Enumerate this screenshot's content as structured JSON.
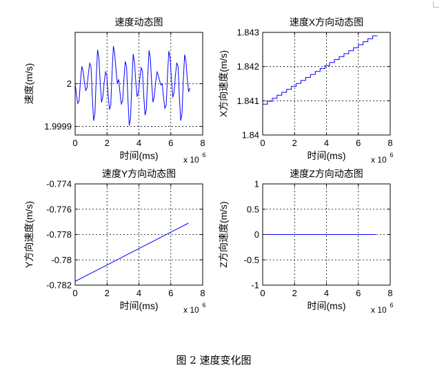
{
  "figure_caption": "图 2  速度变化图",
  "colors": {
    "series": "#0000ff",
    "axis": "#000000",
    "grid": "#000000",
    "background": "#ffffff"
  },
  "chart_data": [
    {
      "type": "line",
      "title": "速度动态图",
      "xlabel": "时间(ms)",
      "ylabel": "速度(m/s)",
      "x_exponent": "x 10",
      "x_exponent_power": "6",
      "xlim": [
        0,
        8
      ],
      "ylim": [
        1.99988,
        2.00012
      ],
      "xticks": [
        0,
        2,
        4,
        6,
        8
      ],
      "xtick_labels": [
        "0",
        "2",
        "4",
        "6",
        "8"
      ],
      "yticks": [
        1.9999,
        2
      ],
      "ytick_labels": [
        "1.9999",
        "2"
      ],
      "grid": true,
      "series": [
        {
          "x_start": 0,
          "x_end": 7.2,
          "pattern": "noise",
          "values": [
            2.0,
            1.99996,
            2.00003,
            1.99999,
            2.00004,
            1.99993,
            2.00006,
            1.99997,
            2.00002,
            1.99995,
            2.00007,
            2.00001,
            1.99996,
            2.00004,
            1.99992,
            2.00005,
            1.99998,
            2.00003,
            1.99994,
            2.00006,
            1.99997,
            2.00002,
            2.0,
            1.99995,
            2.00006,
            1.99998,
            2.00004,
            1.99993,
            2.00005,
            1.99999
          ]
        }
      ]
    },
    {
      "type": "line",
      "title": "速度X方向动态图",
      "xlabel": "时间(ms)",
      "ylabel": "X方向速度(m/s)",
      "x_exponent": "x 10",
      "x_exponent_power": "6",
      "xlim": [
        0,
        8
      ],
      "ylim": [
        1.84,
        1.843
      ],
      "xticks": [
        0,
        2,
        4,
        6,
        8
      ],
      "xtick_labels": [
        "0",
        "2",
        "4",
        "6",
        "8"
      ],
      "yticks": [
        1.84,
        1.841,
        1.842,
        1.843
      ],
      "ytick_labels": [
        "1.84",
        "1.841",
        "1.842",
        "1.843"
      ],
      "grid": true,
      "series": [
        {
          "x_start": 0,
          "x_end": 7.2,
          "y_start": 1.8409,
          "y_end": 1.8429,
          "pattern": "staircase",
          "steps": 24
        }
      ]
    },
    {
      "type": "line",
      "title": "速度Y方向动态图",
      "xlabel": "时间(ms)",
      "ylabel": "Y方向速度(m/s)",
      "x_exponent": "x 10",
      "x_exponent_power": "6",
      "xlim": [
        0,
        8
      ],
      "ylim": [
        -0.782,
        -0.774
      ],
      "xticks": [
        0,
        2,
        4,
        6,
        8
      ],
      "xtick_labels": [
        "0",
        "2",
        "4",
        "6",
        "8"
      ],
      "yticks": [
        -0.782,
        -0.78,
        -0.778,
        -0.776,
        -0.774
      ],
      "ytick_labels": [
        "-0.782",
        "-0.78",
        "-0.778",
        "-0.776",
        "-0.774"
      ],
      "grid": true,
      "series": [
        {
          "x_start": 0,
          "x_end": 7.1,
          "y_start": -0.7817,
          "y_end": -0.7771,
          "pattern": "linear"
        }
      ]
    },
    {
      "type": "line",
      "title": "速度Z方向动态图",
      "xlabel": "时间(ms)",
      "ylabel": "Z方向速度(m/s)",
      "x_exponent": "x 10",
      "x_exponent_power": "6",
      "xlim": [
        0,
        8
      ],
      "ylim": [
        -1,
        1
      ],
      "xticks": [
        0,
        2,
        4,
        6,
        8
      ],
      "xtick_labels": [
        "0",
        "2",
        "4",
        "6",
        "8"
      ],
      "yticks": [
        -1,
        -0.5,
        0,
        0.5,
        1
      ],
      "ytick_labels": [
        "-1",
        "-0.5",
        "0",
        "0.5",
        "1"
      ],
      "grid": true,
      "series": [
        {
          "x_start": 0,
          "x_end": 7.1,
          "y_start": 0,
          "y_end": 0,
          "pattern": "linear"
        }
      ]
    }
  ]
}
